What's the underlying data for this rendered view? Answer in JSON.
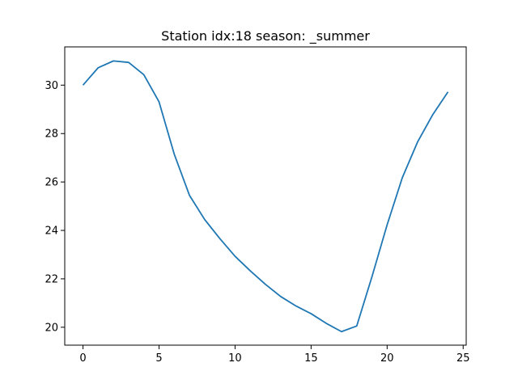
{
  "chart_data": {
    "type": "line",
    "title": "Station idx:18 season: _summer",
    "xlabel": "",
    "ylabel": "",
    "xlim": [
      -1.2,
      25.2
    ],
    "ylim": [
      19.26,
      31.58
    ],
    "xticks": [
      0,
      5,
      10,
      15,
      20,
      25
    ],
    "yticks": [
      20,
      22,
      24,
      26,
      28,
      30
    ],
    "grid": false,
    "legend": "none",
    "series": [
      {
        "color": "#1f77b4",
        "x": [
          0,
          1,
          2,
          3,
          4,
          5,
          6,
          7,
          8,
          9,
          10,
          11,
          12,
          13,
          14,
          15,
          16,
          17,
          18,
          19,
          20,
          21,
          22,
          23,
          24
        ],
        "values": [
          30.0,
          30.72,
          31.0,
          30.94,
          30.43,
          29.31,
          27.15,
          25.45,
          24.45,
          23.66,
          22.93,
          22.33,
          21.77,
          21.27,
          20.88,
          20.56,
          20.16,
          19.82,
          20.05,
          22.08,
          24.23,
          26.18,
          27.65,
          28.78,
          29.72
        ]
      }
    ]
  }
}
